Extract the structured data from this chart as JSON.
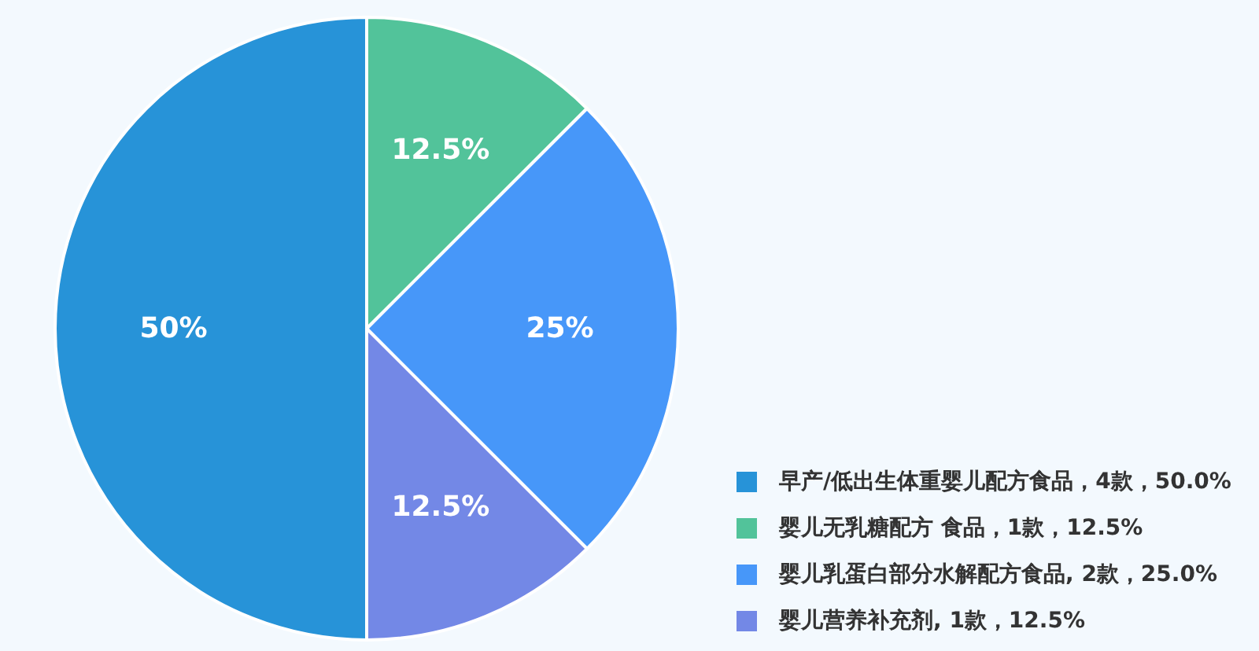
{
  "chart_data": {
    "type": "pie",
    "categories": [
      "早产/低出生体重婴儿配方食品，4款，50.0%",
      "婴儿无乳糖配方 食品，1款，12.5%",
      "婴儿乳蛋白部分水解配方食品, 2款，25.0%",
      "婴儿营养补充剂, 1款，12.5%"
    ],
    "values": [
      50,
      12.5,
      25,
      12.5
    ],
    "colors": [
      "#2793d8",
      "#52c39a",
      "#4797f9",
      "#7388e6"
    ],
    "value_labels": [
      "50%",
      "12.5%",
      "25%",
      "12.5%"
    ],
    "legend": "bottom right"
  }
}
